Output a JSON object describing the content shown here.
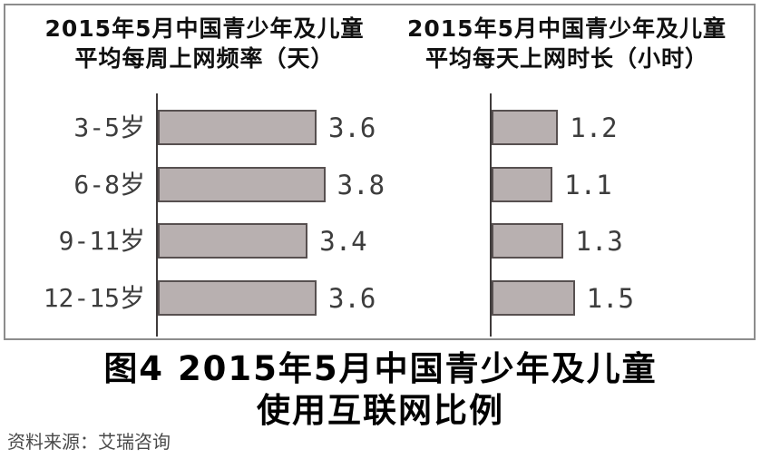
{
  "figure": {
    "caption_line1": "图4  2015年5月中国青少年及儿童",
    "caption_line2": "使用互联网比例",
    "source_text": "资料来源：艾瑞咨询"
  },
  "style": {
    "bar_fill": "#b8b0b0",
    "bar_border": "#575050",
    "axis_color": "#3f3b3b",
    "frame_border": "#8c8c8c"
  },
  "chart_data": [
    {
      "type": "bar",
      "orientation": "horizontal",
      "title_line1": "2015年5月中国青少年及儿童",
      "title_line2": "平均每周上网频率（天）",
      "unit": "天",
      "categories": [
        "3-5岁",
        "6-8岁",
        "9-11岁",
        "12-15岁"
      ],
      "values": [
        3.6,
        3.8,
        3.4,
        3.6
      ],
      "value_labels": [
        "3.6",
        "3.8",
        "3.4",
        "3.6"
      ],
      "xlim": [
        0,
        5
      ],
      "grid": false,
      "legend": "none",
      "show_category_labels": true
    },
    {
      "type": "bar",
      "orientation": "horizontal",
      "title_line1": "2015年5月中国青少年及儿童",
      "title_line2": "平均每天上网时长（小时）",
      "unit": "小时",
      "categories": [
        "3-5岁",
        "6-8岁",
        "9-11岁",
        "12-15岁"
      ],
      "values": [
        1.2,
        1.1,
        1.3,
        1.5
      ],
      "value_labels": [
        "1.2",
        "1.1",
        "1.3",
        "1.5"
      ],
      "xlim": [
        0,
        4.7
      ],
      "grid": false,
      "legend": "none",
      "show_category_labels": false
    }
  ]
}
